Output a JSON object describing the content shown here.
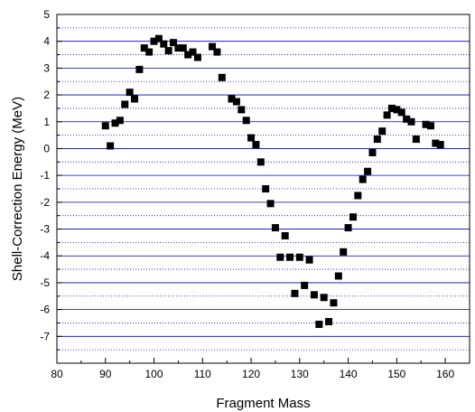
{
  "chart_data": {
    "type": "scatter",
    "title": "",
    "xlabel": "Fragment Mass",
    "ylabel": "Shell-Correction Energy (MeV)",
    "xlim": [
      80,
      165
    ],
    "ylim": [
      -8,
      5
    ],
    "x_ticks": [
      80,
      90,
      100,
      110,
      120,
      130,
      140,
      150,
      160
    ],
    "y_ticks": [
      -7,
      -6,
      -5,
      -4,
      -3,
      -2,
      -1,
      0,
      1,
      2,
      3,
      4,
      5
    ],
    "grid": "horizontal",
    "marker": "square",
    "colors": {
      "marker": "#000000",
      "grid_solid": "#0000cc",
      "grid_dotted": "#0000cc",
      "axis": "#000000"
    },
    "points": [
      [
        90,
        0.85
      ],
      [
        91,
        0.1
      ],
      [
        92,
        0.95
      ],
      [
        93,
        1.05
      ],
      [
        94,
        1.65
      ],
      [
        95,
        2.1
      ],
      [
        96,
        1.85
      ],
      [
        97,
        2.95
      ],
      [
        98,
        3.75
      ],
      [
        99,
        3.6
      ],
      [
        100,
        4.0
      ],
      [
        101,
        4.1
      ],
      [
        102,
        3.9
      ],
      [
        103,
        3.65
      ],
      [
        104,
        3.95
      ],
      [
        105,
        3.75
      ],
      [
        106,
        3.75
      ],
      [
        107,
        3.5
      ],
      [
        108,
        3.6
      ],
      [
        109,
        3.4
      ],
      [
        112,
        3.8
      ],
      [
        113,
        3.6
      ],
      [
        114,
        2.65
      ],
      [
        116,
        1.85
      ],
      [
        117,
        1.75
      ],
      [
        118,
        1.45
      ],
      [
        119,
        1.05
      ],
      [
        120,
        0.4
      ],
      [
        121,
        0.15
      ],
      [
        122,
        -0.5
      ],
      [
        123,
        -1.5
      ],
      [
        124,
        -2.05
      ],
      [
        125,
        -2.95
      ],
      [
        126,
        -4.05
      ],
      [
        127,
        -3.25
      ],
      [
        128,
        -4.05
      ],
      [
        129,
        -5.4
      ],
      [
        130,
        -4.05
      ],
      [
        131,
        -5.1
      ],
      [
        132,
        -4.15
      ],
      [
        133,
        -5.45
      ],
      [
        134,
        -6.55
      ],
      [
        135,
        -5.55
      ],
      [
        136,
        -6.45
      ],
      [
        137,
        -5.75
      ],
      [
        138,
        -4.75
      ],
      [
        139,
        -3.85
      ],
      [
        140,
        -2.95
      ],
      [
        141,
        -2.55
      ],
      [
        142,
        -1.75
      ],
      [
        143,
        -1.15
      ],
      [
        144,
        -0.85
      ],
      [
        145,
        -0.15
      ],
      [
        146,
        0.35
      ],
      [
        147,
        0.65
      ],
      [
        148,
        1.25
      ],
      [
        149,
        1.5
      ],
      [
        150,
        1.45
      ],
      [
        151,
        1.35
      ],
      [
        152,
        1.1
      ],
      [
        153,
        1.0
      ],
      [
        154,
        0.35
      ],
      [
        156,
        0.9
      ],
      [
        157,
        0.85
      ],
      [
        158,
        0.2
      ],
      [
        159,
        0.15
      ]
    ]
  }
}
